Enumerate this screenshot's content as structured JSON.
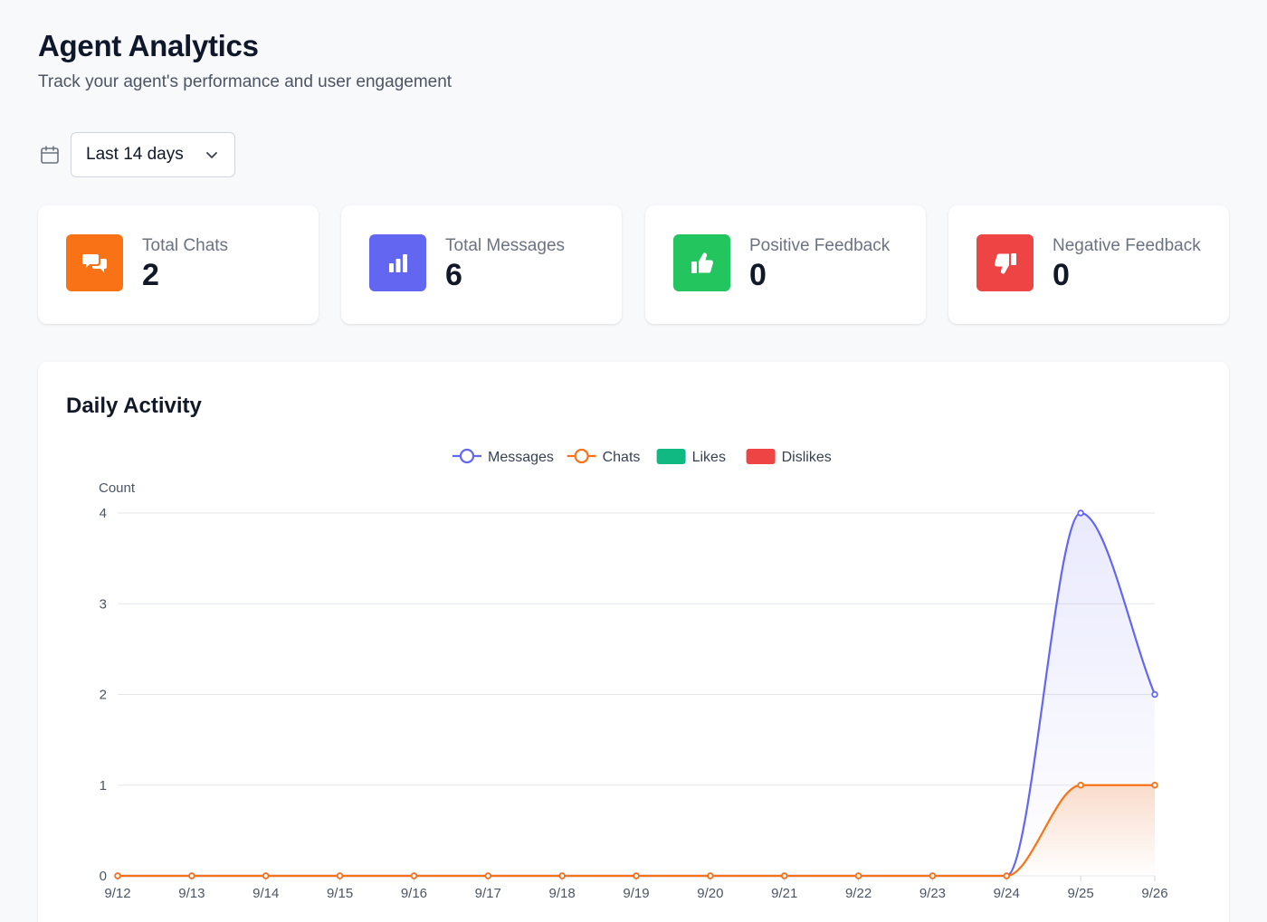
{
  "header": {
    "title": "Agent Analytics",
    "subtitle": "Track your agent's performance and user engagement"
  },
  "date_range": {
    "icon": "calendar-icon",
    "selected": "Last 14 days"
  },
  "stats": [
    {
      "label": "Total Chats",
      "value": "2",
      "icon": "chat-bubbles-icon",
      "color": "#f97316"
    },
    {
      "label": "Total Messages",
      "value": "6",
      "icon": "bar-chart-icon",
      "color": "#6366f1"
    },
    {
      "label": "Positive Feedback",
      "value": "0",
      "icon": "thumbs-up-icon",
      "color": "#22c55e"
    },
    {
      "label": "Negative Feedback",
      "value": "0",
      "icon": "thumbs-down-icon",
      "color": "#ef4444"
    }
  ],
  "daily_activity": {
    "title": "Daily Activity"
  },
  "chart_data": {
    "type": "line",
    "ylabel": "Count",
    "xlabel": "",
    "ylim": [
      0,
      4
    ],
    "y_ticks": [
      0,
      1,
      2,
      3,
      4
    ],
    "grid": true,
    "legend_position": "top-center",
    "x": [
      "9/12",
      "9/13",
      "9/14",
      "9/15",
      "9/16",
      "9/17",
      "9/18",
      "9/19",
      "9/20",
      "9/21",
      "9/22",
      "9/23",
      "9/24",
      "9/25",
      "9/26"
    ],
    "series": [
      {
        "name": "Messages",
        "type": "line",
        "color": "#6366f1",
        "values": [
          0,
          0,
          0,
          0,
          0,
          0,
          0,
          0,
          0,
          0,
          0,
          0,
          0,
          4,
          2
        ]
      },
      {
        "name": "Chats",
        "type": "line",
        "color": "#f97316",
        "values": [
          0,
          0,
          0,
          0,
          0,
          0,
          0,
          0,
          0,
          0,
          0,
          0,
          0,
          1,
          1
        ]
      },
      {
        "name": "Likes",
        "type": "bar",
        "color": "#10b981",
        "values": [
          0,
          0,
          0,
          0,
          0,
          0,
          0,
          0,
          0,
          0,
          0,
          0,
          0,
          0,
          0
        ]
      },
      {
        "name": "Dislikes",
        "type": "bar",
        "color": "#ef4444",
        "values": [
          0,
          0,
          0,
          0,
          0,
          0,
          0,
          0,
          0,
          0,
          0,
          0,
          0,
          0,
          0
        ]
      }
    ]
  }
}
